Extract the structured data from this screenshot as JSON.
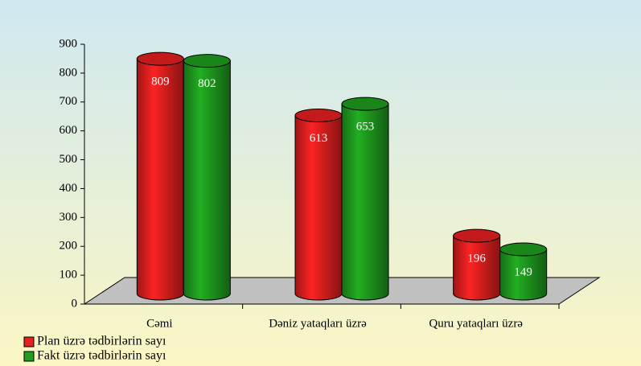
{
  "chart_data": {
    "type": "bar",
    "categories": [
      "Cəmi",
      "Dəniz yataqları üzrə",
      "Quru yataqları üzrə"
    ],
    "series": [
      {
        "name": "Plan üzrə tədbirlərin sayı",
        "color": "#e52020",
        "values": [
          809,
          613,
          196
        ]
      },
      {
        "name": "Fakt üzrə tədbirlərin sayı",
        "color": "#1f9e1f",
        "values": [
          802,
          653,
          149
        ]
      }
    ],
    "ylim": [
      0,
      900
    ],
    "yticks": [
      0,
      100,
      200,
      300,
      400,
      500,
      600,
      700,
      800,
      900
    ],
    "legend": "bottom-left"
  }
}
